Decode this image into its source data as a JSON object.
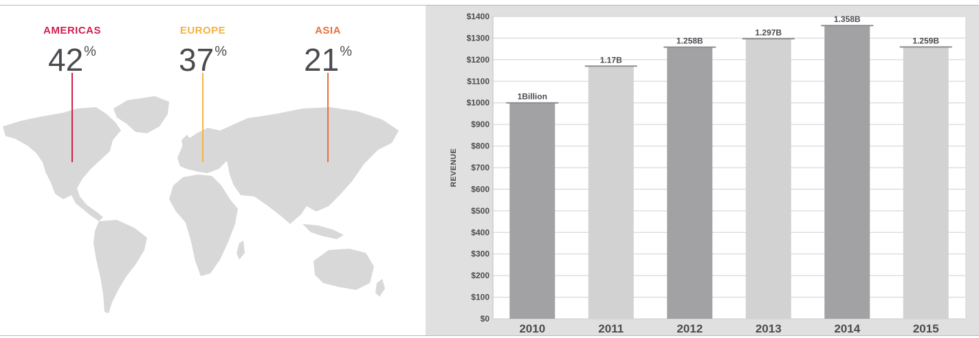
{
  "colors": {
    "americas": "#cf1f4f",
    "europe": "#f3b245",
    "asia": "#ec6f3a",
    "value_text": "#4b4b4f",
    "bar_dark": "#a2a2a5",
    "bar_light": "#d2d2d3",
    "plot_bg": "#ffffff",
    "grid": "#cfcfd0",
    "panel_bg": "#e1e0e1",
    "map_land": "#d8d8d9"
  },
  "map": {
    "icon": "world-map",
    "regions": [
      {
        "name": "AMERICAS",
        "value": "42",
        "unit": "%"
      },
      {
        "name": "EUROPE",
        "value": "37",
        "unit": "%"
      },
      {
        "name": "ASIA",
        "value": "21",
        "unit": "%"
      }
    ]
  },
  "chart_data": {
    "type": "bar",
    "title": "",
    "xlabel": "",
    "ylabel": "REVENUE",
    "categories": [
      "2010",
      "2011",
      "2012",
      "2013",
      "2014",
      "2015"
    ],
    "values": [
      1000,
      1170,
      1258,
      1297,
      1358,
      1259
    ],
    "data_labels": [
      "1Billion",
      "1.17B",
      "1.258B",
      "1.297B",
      "1.358B",
      "1.259B"
    ],
    "y_ticks": [
      0,
      100,
      200,
      300,
      400,
      500,
      600,
      700,
      800,
      900,
      1000,
      1100,
      1200,
      1300,
      1400
    ],
    "y_tick_labels": [
      "$0",
      "$100",
      "$200",
      "$300",
      "$400",
      "$500",
      "$600",
      "$700",
      "$800",
      "$900",
      "$1000",
      "$1100",
      "$1200",
      "$1300",
      "$1400"
    ],
    "ylim": [
      0,
      1400
    ],
    "grid": true,
    "legend": "none",
    "bar_shades": [
      "dark",
      "light",
      "dark",
      "light",
      "dark",
      "light"
    ]
  }
}
